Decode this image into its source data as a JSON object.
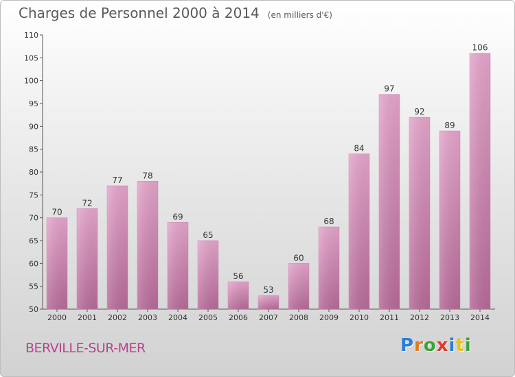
{
  "title": "Charges de Personnel 2000 à 2014",
  "subtitle": "(en milliers d'€)",
  "place": "BERVILLE-SUR-MER",
  "logo": {
    "text": "Proxiti",
    "letters": [
      "P",
      "r",
      "o",
      "x",
      "i",
      "t",
      "i"
    ],
    "colors": [
      "#2a7fd4",
      "#e8791f",
      "#3aa536",
      "#e03a2f",
      "#2a7fd4",
      "#e8c21f",
      "#3aa536"
    ]
  },
  "colors": {
    "bar": "#d98fba",
    "bar_dark": "#b86a9a",
    "axis": "#555555",
    "text": "#333333"
  },
  "chart_data": {
    "type": "bar",
    "categories": [
      "2000",
      "2001",
      "2002",
      "2003",
      "2004",
      "2005",
      "2006",
      "2007",
      "2008",
      "2009",
      "2010",
      "2011",
      "2012",
      "2013",
      "2014"
    ],
    "values": [
      70,
      72,
      77,
      78,
      69,
      65,
      56,
      53,
      60,
      68,
      84,
      97,
      92,
      89,
      106
    ],
    "ylim": [
      50,
      110
    ],
    "yticks": [
      50,
      55,
      60,
      65,
      70,
      75,
      80,
      85,
      90,
      95,
      100,
      105,
      110
    ],
    "grid": false
  }
}
